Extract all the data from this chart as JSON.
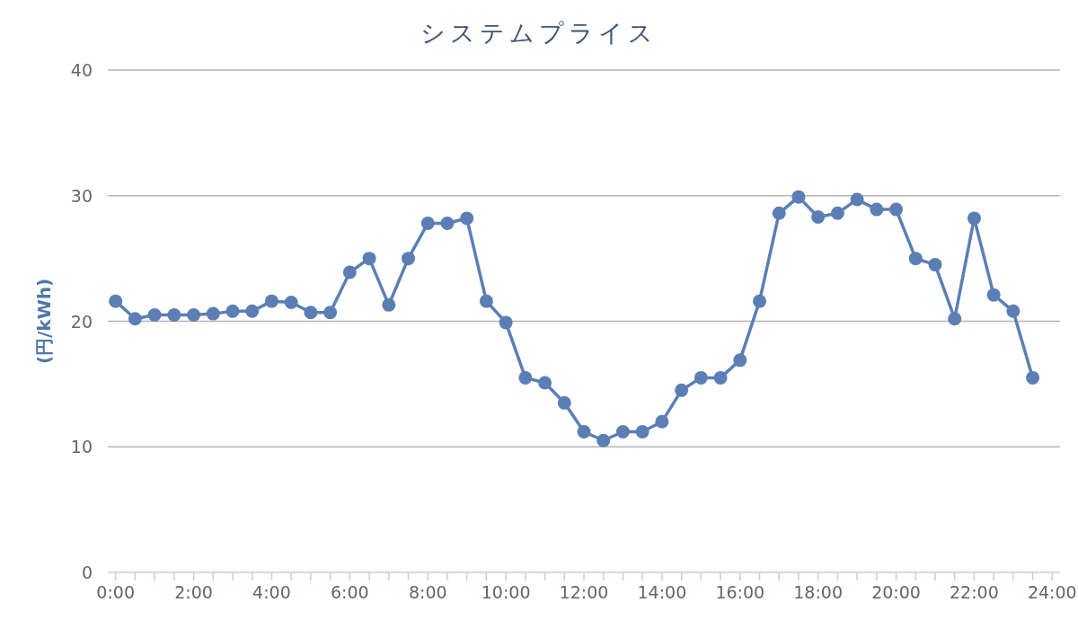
{
  "chart_data": {
    "type": "line",
    "title": "システムプライス",
    "ylabel": "(円/kWh)",
    "x": [
      0,
      0.5,
      1,
      1.5,
      2,
      2.5,
      3,
      3.5,
      4,
      4.5,
      5,
      5.5,
      6,
      6.5,
      7,
      7.5,
      8,
      8.5,
      9,
      9.5,
      10,
      10.5,
      11,
      11.5,
      12,
      12.5,
      13,
      13.5,
      14,
      14.5,
      15,
      15.5,
      16,
      16.5,
      17,
      17.5,
      18,
      18.5,
      19,
      19.5,
      20,
      20.5,
      21,
      21.5,
      22,
      22.5,
      23,
      23.5
    ],
    "series": [
      {
        "color": "#5b7fb5",
        "values": [
          21.6,
          20.2,
          20.5,
          20.5,
          20.5,
          20.6,
          20.8,
          20.8,
          21.6,
          21.5,
          20.7,
          20.7,
          23.9,
          25.0,
          21.3,
          25.0,
          27.8,
          27.8,
          28.2,
          21.6,
          19.9,
          15.5,
          15.1,
          13.5,
          11.2,
          10.5,
          11.2,
          11.2,
          12.0,
          14.5,
          15.5,
          15.5,
          16.9,
          21.6,
          28.6,
          29.9,
          28.3,
          28.6,
          29.7,
          28.9,
          28.9,
          25.0,
          24.5,
          20.2,
          28.2,
          22.1,
          20.8,
          15.5
        ]
      }
    ],
    "xlim": [
      -0.2,
      24.2
    ],
    "ylim": [
      0,
      40
    ],
    "xticks": [
      {
        "value": 0,
        "label": "0:00"
      },
      {
        "value": 0.5,
        "label": null
      },
      {
        "value": 1,
        "label": null
      },
      {
        "value": 1.5,
        "label": null
      },
      {
        "value": 2,
        "label": "2:00"
      },
      {
        "value": 2.5,
        "label": null
      },
      {
        "value": 3,
        "label": null
      },
      {
        "value": 3.5,
        "label": null
      },
      {
        "value": 4,
        "label": "4:00"
      },
      {
        "value": 4.5,
        "label": null
      },
      {
        "value": 5,
        "label": null
      },
      {
        "value": 5.5,
        "label": null
      },
      {
        "value": 6,
        "label": "6:00"
      },
      {
        "value": 6.5,
        "label": null
      },
      {
        "value": 7,
        "label": null
      },
      {
        "value": 7.5,
        "label": null
      },
      {
        "value": 8,
        "label": "8:00"
      },
      {
        "value": 8.5,
        "label": null
      },
      {
        "value": 9,
        "label": null
      },
      {
        "value": 9.5,
        "label": null
      },
      {
        "value": 10,
        "label": "10:00"
      },
      {
        "value": 10.5,
        "label": null
      },
      {
        "value": 11,
        "label": null
      },
      {
        "value": 11.5,
        "label": null
      },
      {
        "value": 12,
        "label": "12:00"
      },
      {
        "value": 12.5,
        "label": null
      },
      {
        "value": 13,
        "label": null
      },
      {
        "value": 13.5,
        "label": null
      },
      {
        "value": 14,
        "label": "14:00"
      },
      {
        "value": 14.5,
        "label": null
      },
      {
        "value": 15,
        "label": null
      },
      {
        "value": 15.5,
        "label": null
      },
      {
        "value": 16,
        "label": "16:00"
      },
      {
        "value": 16.5,
        "label": null
      },
      {
        "value": 17,
        "label": null
      },
      {
        "value": 17.5,
        "label": null
      },
      {
        "value": 18,
        "label": "18:00"
      },
      {
        "value": 18.5,
        "label": null
      },
      {
        "value": 19,
        "label": null
      },
      {
        "value": 19.5,
        "label": null
      },
      {
        "value": 20,
        "label": "20:00"
      },
      {
        "value": 20.5,
        "label": null
      },
      {
        "value": 21,
        "label": null
      },
      {
        "value": 21.5,
        "label": null
      },
      {
        "value": 22,
        "label": "22:00"
      },
      {
        "value": 22.5,
        "label": null
      },
      {
        "value": 23,
        "label": null
      },
      {
        "value": 23.5,
        "label": null
      },
      {
        "value": 24,
        "label": "24:00"
      }
    ],
    "yticks": [
      0,
      10,
      20,
      30,
      40
    ],
    "grid": "y",
    "marker": "circle",
    "line_style": "solid"
  }
}
